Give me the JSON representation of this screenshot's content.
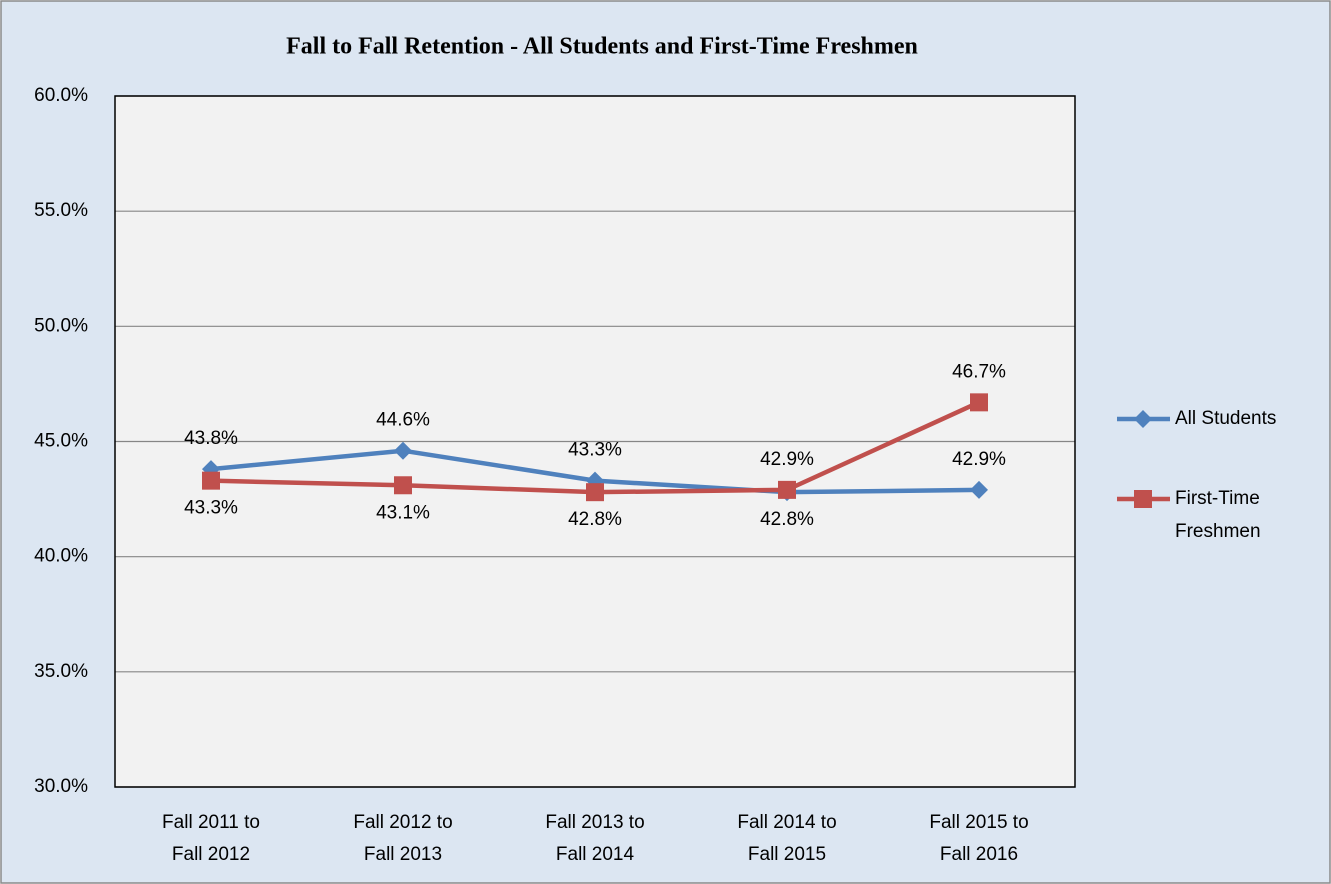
{
  "chart_data": {
    "type": "line",
    "title": "Fall to Fall Retention - All Students and First-Time Freshmen",
    "categories": [
      "Fall 2011 to Fall 2012",
      "Fall 2012 to Fall 2013",
      "Fall 2013 to Fall 2014",
      "Fall 2014 to Fall 2015",
      "Fall 2015 to Fall 2016"
    ],
    "series": [
      {
        "name": "All Students",
        "color": "#4f81bd",
        "marker": "diamond",
        "values": [
          43.8,
          44.6,
          43.3,
          42.8,
          42.9
        ],
        "value_labels": [
          "43.8%",
          "44.6%",
          "43.3%",
          "42.8%",
          "42.9%"
        ]
      },
      {
        "name": "First-Time Freshmen",
        "color": "#c0504d",
        "marker": "square",
        "values": [
          43.3,
          43.1,
          42.8,
          42.9,
          46.7
        ],
        "value_labels": [
          "43.3%",
          "43.1%",
          "42.8%",
          "42.9%",
          "46.7%"
        ]
      }
    ],
    "ylim": [
      30,
      60
    ],
    "yticks": [
      {
        "value": 30,
        "label": "30.0%"
      },
      {
        "value": 35,
        "label": "35.0%"
      },
      {
        "value": 40,
        "label": "40.0%"
      },
      {
        "value": 45,
        "label": "45.0%"
      },
      {
        "value": 50,
        "label": "50.0%"
      },
      {
        "value": 55,
        "label": "55.0%"
      },
      {
        "value": 60,
        "label": "60.0%"
      }
    ],
    "grid": true,
    "legend": "right"
  }
}
